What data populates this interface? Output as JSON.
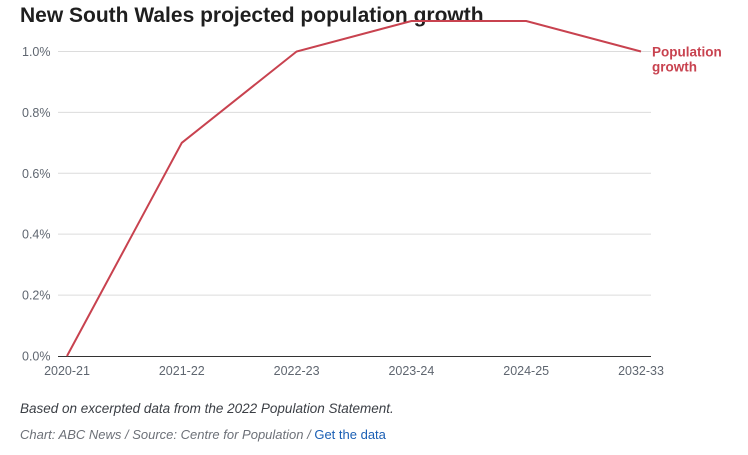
{
  "colors": {
    "line": "#c8424f",
    "grid": "#dcdcdc",
    "axis": "#333333",
    "link": "#1a5fb4"
  },
  "chart_data": {
    "type": "line",
    "title": "New South Wales projected population growth",
    "xlabel": "",
    "ylabel": "",
    "categories": [
      "2020-21",
      "2021-22",
      "2022-23",
      "2023-24",
      "2024-25",
      "2032-33"
    ],
    "series": [
      {
        "name": "Population growth",
        "label_lines": [
          "Population",
          "growth"
        ],
        "values": [
          0.0,
          0.7,
          1.0,
          1.1,
          1.1,
          1.0
        ]
      }
    ],
    "yticks": [
      0.0,
      0.2,
      0.4,
      0.6,
      0.8,
      1.0
    ],
    "ytick_labels": [
      "0.0%",
      "0.2%",
      "0.4%",
      "0.6%",
      "0.8%",
      "1.0%"
    ],
    "ylim": [
      0,
      1.1
    ],
    "grid": true,
    "legend": "inline-right"
  },
  "footer": {
    "note": "Based on excerpted data from the 2022 Population Statement.",
    "credit": "Chart: ABC News / Source: Centre for Population /",
    "link_label": "Get the data"
  }
}
